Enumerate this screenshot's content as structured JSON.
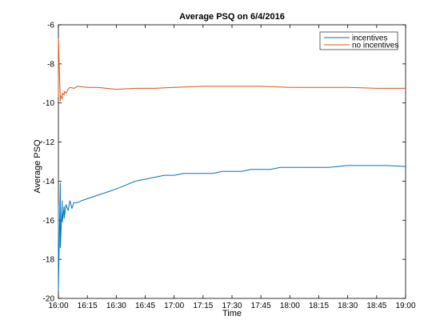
{
  "chart_data": {
    "type": "line",
    "title": "Average PSQ on 6/4/2016",
    "xlabel": "Time",
    "ylabel": "Average PSQ",
    "xlim": [
      "16:00",
      "19:00"
    ],
    "ylim": [
      -20,
      -6
    ],
    "x_ticks": [
      "16:00",
      "16:15",
      "16:30",
      "16:45",
      "17:00",
      "17:15",
      "17:30",
      "17:45",
      "18:00",
      "18:15",
      "18:30",
      "18:45",
      "19:00"
    ],
    "y_ticks": [
      "-20",
      "-18",
      "-16",
      "-14",
      "-12",
      "-10",
      "-8",
      "-6"
    ],
    "grid": false,
    "legend_position": "top-right",
    "series": [
      {
        "name": "incentives",
        "color": "#0072bd",
        "x": [
          "16:00",
          "16:00",
          "16:01",
          "16:01",
          "16:02",
          "16:02",
          "16:03",
          "16:03",
          "16:04",
          "16:05",
          "16:06",
          "16:07",
          "16:08",
          "16:10",
          "16:12",
          "16:15",
          "16:18",
          "16:21",
          "16:24",
          "16:27",
          "16:30",
          "16:35",
          "16:40",
          "16:45",
          "16:50",
          "16:55",
          "17:00",
          "17:05",
          "17:10",
          "17:15",
          "17:20",
          "17:25",
          "17:30",
          "17:35",
          "17:40",
          "17:45",
          "17:50",
          "17:55",
          "18:00",
          "18:10",
          "18:20",
          "18:30",
          "18:40",
          "18:50",
          "19:00"
        ],
        "values": [
          -15.2,
          -19.6,
          -14.1,
          -17.4,
          -15.0,
          -16.1,
          -15.3,
          -15.9,
          -15.2,
          -15.5,
          -15.0,
          -15.4,
          -15.1,
          -15.1,
          -15.0,
          -14.9,
          -14.8,
          -14.7,
          -14.6,
          -14.5,
          -14.4,
          -14.2,
          -14.0,
          -13.9,
          -13.8,
          -13.7,
          -13.7,
          -13.6,
          -13.6,
          -13.6,
          -13.6,
          -13.5,
          -13.5,
          -13.5,
          -13.4,
          -13.4,
          -13.4,
          -13.3,
          -13.3,
          -13.3,
          -13.3,
          -13.2,
          -13.2,
          -13.2,
          -13.25
        ]
      },
      {
        "name": "no incentives",
        "color": "#d95319",
        "x": [
          "16:00",
          "16:00",
          "16:01",
          "16:01",
          "16:02",
          "16:02",
          "16:03",
          "16:03",
          "16:04",
          "16:05",
          "16:06",
          "16:08",
          "16:10",
          "16:15",
          "16:20",
          "16:30",
          "16:40",
          "16:50",
          "17:00",
          "17:15",
          "17:30",
          "17:45",
          "18:00",
          "18:15",
          "18:30",
          "18:45",
          "19:00"
        ],
        "values": [
          -9.7,
          -6.7,
          -9.9,
          -9.6,
          -9.8,
          -9.5,
          -9.6,
          -9.4,
          -9.5,
          -9.3,
          -9.2,
          -9.25,
          -9.15,
          -9.2,
          -9.2,
          -9.3,
          -9.25,
          -9.25,
          -9.2,
          -9.15,
          -9.15,
          -9.15,
          -9.2,
          -9.2,
          -9.2,
          -9.25,
          -9.25
        ]
      }
    ]
  }
}
